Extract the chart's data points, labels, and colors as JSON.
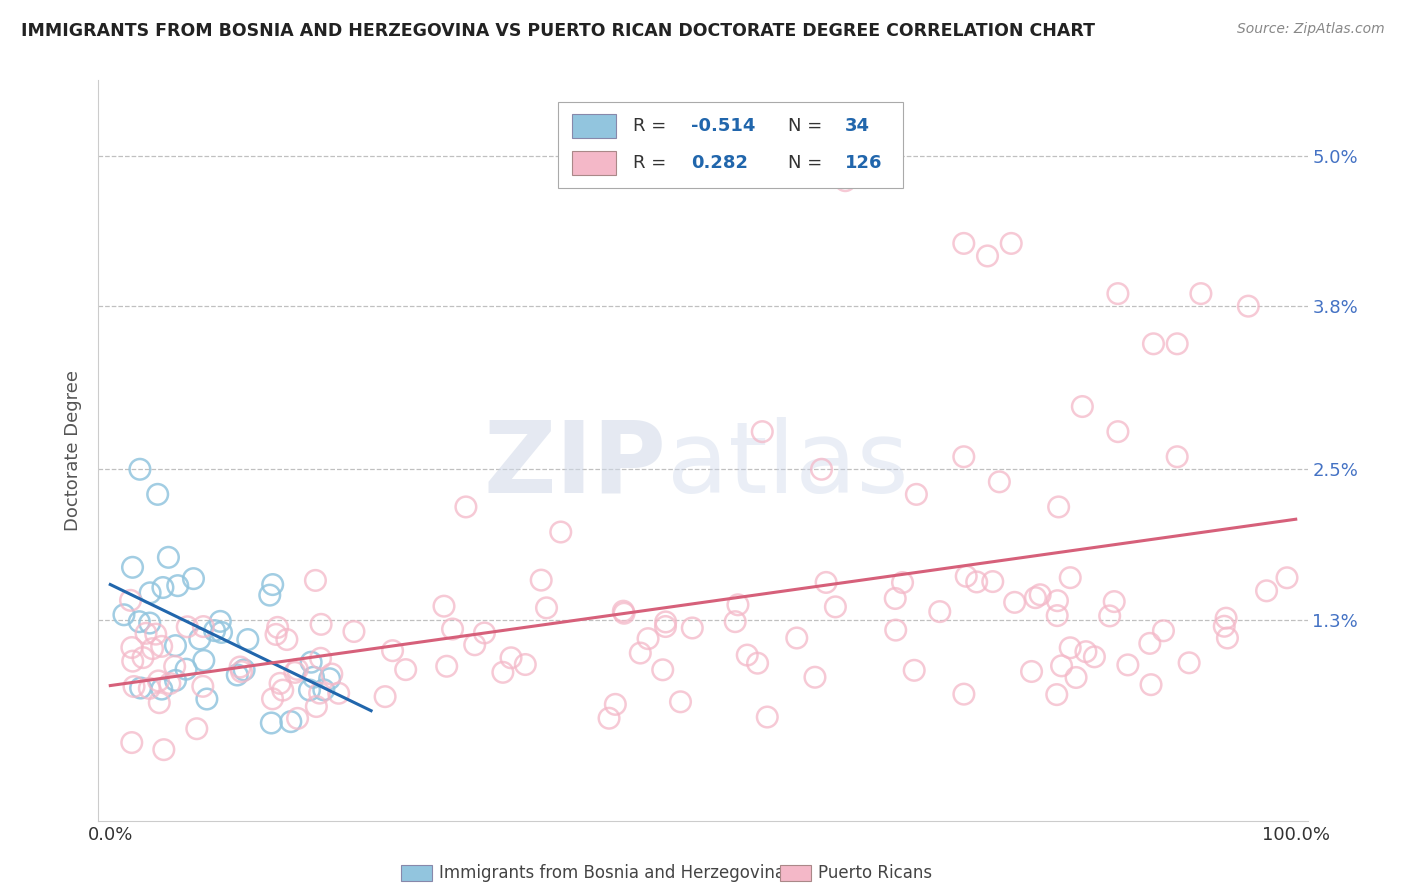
{
  "title": "IMMIGRANTS FROM BOSNIA AND HERZEGOVINA VS PUERTO RICAN DOCTORATE DEGREE CORRELATION CHART",
  "source": "Source: ZipAtlas.com",
  "ylabel": "Doctorate Degree",
  "xlim": [
    0,
    100
  ],
  "ylim": [
    -0.3,
    5.6
  ],
  "yticks": [
    1.3,
    2.5,
    3.8,
    5.0
  ],
  "ytick_labels": [
    "1.3%",
    "2.5%",
    "3.8%",
    "5.0%"
  ],
  "xtick_labels": [
    "0.0%",
    "100.0%"
  ],
  "legend_blue_r": "-0.514",
  "legend_blue_n": "34",
  "legend_pink_r": "0.282",
  "legend_pink_n": "126",
  "legend_label_blue": "Immigrants from Bosnia and Herzegovina",
  "legend_label_pink": "Puerto Ricans",
  "blue_color": "#92c5de",
  "pink_color": "#f4b8c8",
  "blue_line_color": "#2166ac",
  "pink_line_color": "#d6607a",
  "watermark_zip": "ZIP",
  "watermark_atlas": "atlas",
  "background_color": "#ffffff",
  "blue_r_color": "#2166ac",
  "pink_r_color": "#d6607a",
  "label_color": "#4472c4",
  "grid_color": "#c0c0c0"
}
